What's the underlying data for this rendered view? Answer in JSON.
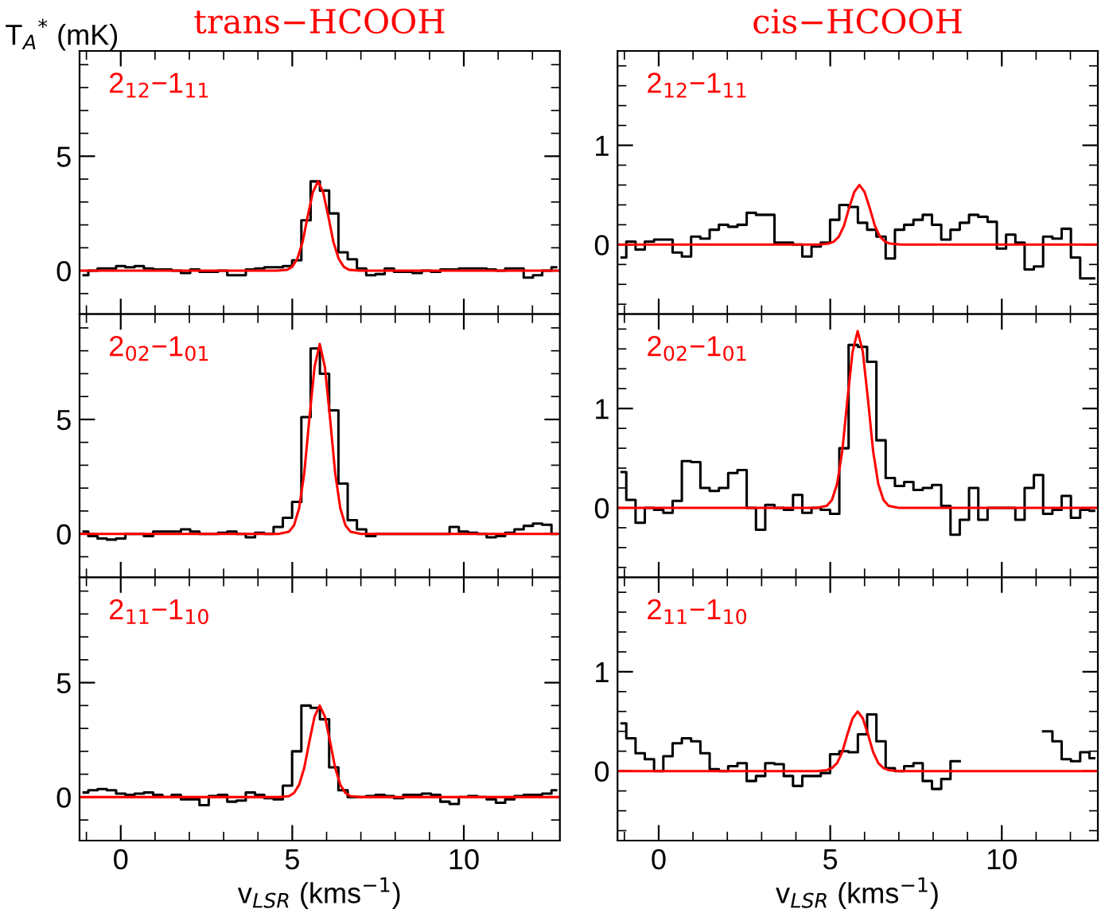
{
  "chart_data": [
    {
      "type": "step",
      "title": "trans−HCOOH",
      "ylabel": "T$_{A}$$^{*}$ (mK)",
      "annotations": [
        "2$_{12}$−1$_{11}$"
      ],
      "tick_labels": "y",
      "x": [
        -1.08,
        -0.81,
        -0.54,
        -0.27,
        0.0,
        0.27,
        0.54,
        0.81,
        1.08,
        1.35,
        1.62,
        1.89,
        2.16,
        2.43,
        2.7,
        2.97,
        3.24,
        3.51,
        3.78,
        4.05,
        4.32,
        4.59,
        4.86,
        5.13,
        5.4,
        5.67,
        5.94,
        6.21,
        6.48,
        6.75,
        7.02,
        7.29,
        7.56,
        7.83,
        8.1,
        8.37,
        8.64,
        8.91,
        9.18,
        9.45,
        9.72,
        9.99,
        10.26,
        10.53,
        10.8,
        11.07,
        11.34,
        11.61,
        11.88,
        12.15,
        12.42,
        12.69
      ],
      "series": [
        {
          "color": "#000000",
          "values": [
            -0.2,
            0.0,
            0.1,
            0.1,
            0.2,
            0.15,
            0.2,
            0.1,
            0.05,
            0.05,
            0.0,
            -0.1,
            0.05,
            -0.05,
            -0.05,
            0.0,
            -0.2,
            -0.2,
            0.05,
            0.1,
            0.15,
            0.15,
            0.2,
            0.45,
            2.2,
            3.9,
            3.5,
            2.5,
            0.8,
            0.5,
            0.1,
            -0.2,
            -0.15,
            0.1,
            -0.05,
            -0.05,
            -0.1,
            0.0,
            -0.05,
            0.05,
            0.05,
            0.1,
            0.1,
            0.1,
            0.05,
            0.0,
            0.1,
            0.1,
            -0.3,
            -0.2,
            0.0,
            0.15
          ]
        },
        {
          "type": "line",
          "color": "#ff0000",
          "x": [
            -1.2,
            4.55,
            4.85,
            5.0,
            5.15,
            5.3,
            5.45,
            5.6,
            5.75,
            5.9,
            6.05,
            6.2,
            6.35,
            6.5,
            6.65,
            6.95,
            12.8
          ],
          "values": [
            0,
            0,
            0.04,
            0.17,
            0.53,
            1.25,
            2.38,
            3.43,
            3.9,
            3.43,
            2.38,
            1.25,
            0.53,
            0.17,
            0.04,
            0,
            0
          ]
        }
      ],
      "xlim": [
        -1.2,
        12.8
      ],
      "ylim": [
        -1.9,
        9.6
      ],
      "xticks": [
        {
          "value": -1,
          "label": null
        },
        0,
        {
          "value": 1,
          "label": null
        },
        {
          "value": 2,
          "label": null
        },
        {
          "value": 3,
          "label": null
        },
        {
          "value": 4,
          "label": null
        },
        5,
        {
          "value": 6,
          "label": null
        },
        {
          "value": 7,
          "label": null
        },
        {
          "value": 8,
          "label": null
        },
        {
          "value": 9,
          "label": null
        },
        10,
        {
          "value": 11,
          "label": null
        },
        {
          "value": 12,
          "label": null
        }
      ],
      "yticks": [
        {
          "value": -1,
          "label": null
        },
        0,
        {
          "value": 1,
          "label": null
        },
        {
          "value": 2,
          "label": null
        },
        {
          "value": 3,
          "label": null
        },
        {
          "value": 4,
          "label": null
        },
        5,
        {
          "value": 6,
          "label": null
        },
        {
          "value": 7,
          "label": null
        },
        {
          "value": 8,
          "label": null
        },
        {
          "value": 9,
          "label": null
        }
      ]
    },
    {
      "type": "step",
      "title": "cis−HCOOH",
      "annotations": [
        "2$_{12}$−1$_{11}$"
      ],
      "tick_labels": "y",
      "x": [
        -1.08,
        -0.81,
        -0.54,
        -0.27,
        0.0,
        0.27,
        0.54,
        0.81,
        1.08,
        1.35,
        1.62,
        1.89,
        2.16,
        2.43,
        2.7,
        2.97,
        3.24,
        3.51,
        3.78,
        4.05,
        4.32,
        4.59,
        4.86,
        5.13,
        5.4,
        5.67,
        5.94,
        6.21,
        6.48,
        6.75,
        7.02,
        7.29,
        7.56,
        7.83,
        8.1,
        8.37,
        8.64,
        8.91,
        9.18,
        9.45,
        9.72,
        9.99,
        10.26,
        10.53,
        10.8,
        11.07,
        11.34,
        11.61,
        11.88,
        12.15,
        12.42,
        12.69
      ],
      "series": [
        {
          "color": "#000000",
          "values": [
            -0.13,
            0.03,
            -0.05,
            0.03,
            0.05,
            0.05,
            -0.08,
            -0.12,
            0.08,
            0.06,
            0.15,
            0.2,
            0.18,
            0.2,
            0.32,
            0.3,
            0.3,
            0.02,
            0.02,
            0.0,
            -0.12,
            -0.02,
            0.02,
            0.25,
            0.4,
            0.38,
            0.22,
            0.15,
            0.08,
            -0.14,
            0.15,
            0.2,
            0.25,
            0.3,
            0.2,
            0.05,
            0.15,
            0.22,
            0.3,
            0.28,
            0.23,
            -0.04,
            0.1,
            0.02,
            -0.25,
            -0.22,
            0.08,
            0.06,
            0.16,
            -0.13,
            -0.34,
            -0.34
          ]
        },
        {
          "type": "line",
          "color": "#ff0000",
          "x": [
            -1.2,
            4.65,
            4.95,
            5.1,
            5.25,
            5.4,
            5.55,
            5.7,
            5.85,
            6.0,
            6.15,
            6.3,
            6.45,
            6.6,
            6.75,
            7.05,
            12.8
          ],
          "values": [
            0,
            0,
            0.01,
            0.03,
            0.08,
            0.19,
            0.37,
            0.53,
            0.6,
            0.53,
            0.37,
            0.19,
            0.08,
            0.03,
            0.01,
            0,
            0
          ]
        }
      ],
      "xlim": [
        -1.2,
        12.8
      ],
      "ylim": [
        -0.7,
        1.95
      ],
      "xticks": [
        {
          "value": -1,
          "label": null
        },
        0,
        {
          "value": 1,
          "label": null
        },
        {
          "value": 2,
          "label": null
        },
        {
          "value": 3,
          "label": null
        },
        {
          "value": 4,
          "label": null
        },
        5,
        {
          "value": 6,
          "label": null
        },
        {
          "value": 7,
          "label": null
        },
        {
          "value": 8,
          "label": null
        },
        {
          "value": 9,
          "label": null
        },
        10,
        {
          "value": 11,
          "label": null
        },
        {
          "value": 12,
          "label": null
        }
      ],
      "yticks": [
        {
          "value": -0.6,
          "label": null
        },
        {
          "value": -0.4,
          "label": null
        },
        {
          "value": -0.2,
          "label": null
        },
        0,
        {
          "value": 0.2,
          "label": null
        },
        {
          "value": 0.4,
          "label": null
        },
        {
          "value": 0.6,
          "label": null
        },
        {
          "value": 0.8,
          "label": null
        },
        1,
        {
          "value": 1.2,
          "label": null
        },
        {
          "value": 1.4,
          "label": null
        },
        {
          "value": 1.6,
          "label": null
        },
        {
          "value": 1.8,
          "label": null
        }
      ]
    },
    {
      "type": "step",
      "annotations": [
        "2$_{02}$−1$_{01}$"
      ],
      "tick_labels": "y",
      "x": [
        -1.08,
        -0.81,
        -0.54,
        -0.27,
        0.0,
        0.27,
        0.54,
        0.81,
        1.08,
        1.35,
        1.62,
        1.89,
        2.16,
        2.43,
        2.7,
        2.97,
        3.24,
        3.51,
        3.78,
        4.05,
        4.32,
        4.59,
        4.86,
        5.13,
        5.4,
        5.67,
        5.94,
        6.21,
        6.48,
        6.75,
        7.02,
        7.29,
        7.56,
        7.83,
        8.1,
        8.37,
        8.64,
        8.91,
        9.18,
        9.45,
        9.72,
        9.99,
        10.26,
        10.53,
        10.8,
        11.07,
        11.34,
        11.61,
        11.88,
        12.15,
        12.42,
        12.69
      ],
      "series": [
        {
          "color": "#000000",
          "values": [
            0.1,
            -0.1,
            -0.2,
            -0.25,
            -0.2,
            0.0,
            0.0,
            -0.1,
            0.1,
            0.1,
            0.1,
            0.2,
            0.1,
            0.0,
            0.0,
            0.05,
            0.1,
            0.0,
            -0.15,
            0.05,
            0.0,
            0.3,
            0.7,
            1.4,
            5.1,
            8.1,
            7.0,
            5.4,
            2.2,
            0.6,
            0.2,
            -0.1,
            0.0,
            0.0,
            0.0,
            0.0,
            0.0,
            0.0,
            0.0,
            0.0,
            0.3,
            0.1,
            0.05,
            0.0,
            -0.15,
            -0.1,
            0.05,
            0.2,
            0.35,
            0.45,
            0.4,
            0.0
          ]
        },
        {
          "type": "line",
          "color": "#ff0000",
          "x": [
            -1.2,
            4.6,
            4.9,
            5.05,
            5.2,
            5.35,
            5.5,
            5.65,
            5.8,
            5.95,
            6.1,
            6.25,
            6.4,
            6.55,
            6.7,
            7.0,
            12.8
          ],
          "values": [
            0,
            0,
            0.09,
            0.37,
            1.12,
            2.66,
            5.06,
            7.3,
            8.3,
            7.3,
            5.06,
            2.66,
            1.12,
            0.37,
            0.09,
            0,
            0
          ]
        }
      ],
      "xlim": [
        -1.2,
        12.8
      ],
      "ylim": [
        -1.9,
        9.6
      ],
      "xticks": [
        {
          "value": -1,
          "label": null
        },
        0,
        {
          "value": 1,
          "label": null
        },
        {
          "value": 2,
          "label": null
        },
        {
          "value": 3,
          "label": null
        },
        {
          "value": 4,
          "label": null
        },
        5,
        {
          "value": 6,
          "label": null
        },
        {
          "value": 7,
          "label": null
        },
        {
          "value": 8,
          "label": null
        },
        {
          "value": 9,
          "label": null
        },
        10,
        {
          "value": 11,
          "label": null
        },
        {
          "value": 12,
          "label": null
        }
      ],
      "yticks": [
        {
          "value": -1,
          "label": null
        },
        0,
        {
          "value": 1,
          "label": null
        },
        {
          "value": 2,
          "label": null
        },
        {
          "value": 3,
          "label": null
        },
        {
          "value": 4,
          "label": null
        },
        5,
        {
          "value": 6,
          "label": null
        },
        {
          "value": 7,
          "label": null
        },
        {
          "value": 8,
          "label": null
        },
        {
          "value": 9,
          "label": null
        }
      ]
    },
    {
      "type": "step",
      "annotations": [
        "2$_{02}$−1$_{01}$"
      ],
      "tick_labels": "y",
      "x": [
        -1.08,
        -0.81,
        -0.54,
        -0.27,
        0.0,
        0.27,
        0.54,
        0.81,
        1.08,
        1.35,
        1.62,
        1.89,
        2.16,
        2.43,
        2.7,
        2.97,
        3.24,
        3.51,
        3.78,
        4.05,
        4.32,
        4.59,
        4.86,
        5.13,
        5.4,
        5.67,
        5.94,
        6.21,
        6.48,
        6.75,
        7.02,
        7.29,
        7.56,
        7.83,
        8.1,
        8.37,
        8.64,
        8.91,
        9.18,
        9.45,
        9.72,
        9.99,
        10.26,
        10.53,
        10.8,
        11.07,
        11.34,
        11.61,
        11.88,
        12.15,
        12.42,
        12.69
      ],
      "series": [
        {
          "color": "#000000",
          "values": [
            0.36,
            0.08,
            -0.15,
            0.0,
            -0.02,
            -0.05,
            0.07,
            0.47,
            0.46,
            0.2,
            0.17,
            0.2,
            0.35,
            0.38,
            0.0,
            -0.22,
            0.03,
            0.0,
            -0.02,
            0.13,
            -0.05,
            0.0,
            -0.02,
            -0.06,
            0.6,
            1.64,
            1.62,
            1.47,
            0.68,
            0.3,
            0.22,
            0.26,
            0.18,
            0.2,
            0.23,
            0.02,
            -0.27,
            -0.12,
            0.2,
            -0.12,
            0.0,
            0.0,
            0.0,
            -0.12,
            0.2,
            0.33,
            -0.06,
            -0.02,
            0.12,
            -0.1,
            -0.02,
            -0.03
          ]
        },
        {
          "type": "line",
          "color": "#ff0000",
          "x": [
            -1.2,
            4.6,
            4.9,
            5.05,
            5.2,
            5.35,
            5.5,
            5.65,
            5.8,
            5.95,
            6.1,
            6.25,
            6.4,
            6.55,
            6.7,
            7.0,
            12.8
          ],
          "values": [
            0,
            0,
            0.02,
            0.08,
            0.24,
            0.57,
            1.09,
            1.57,
            1.78,
            1.57,
            1.09,
            0.57,
            0.24,
            0.08,
            0.02,
            0,
            0
          ]
        }
      ],
      "xlim": [
        -1.2,
        12.8
      ],
      "ylim": [
        -0.7,
        1.95
      ],
      "xticks": [
        {
          "value": -1,
          "label": null
        },
        0,
        {
          "value": 1,
          "label": null
        },
        {
          "value": 2,
          "label": null
        },
        {
          "value": 3,
          "label": null
        },
        {
          "value": 4,
          "label": null
        },
        5,
        {
          "value": 6,
          "label": null
        },
        {
          "value": 7,
          "label": null
        },
        {
          "value": 8,
          "label": null
        },
        {
          "value": 9,
          "label": null
        },
        10,
        {
          "value": 11,
          "label": null
        },
        {
          "value": 12,
          "label": null
        }
      ],
      "yticks": [
        {
          "value": -0.6,
          "label": null
        },
        {
          "value": -0.4,
          "label": null
        },
        {
          "value": -0.2,
          "label": null
        },
        0,
        {
          "value": 0.2,
          "label": null
        },
        {
          "value": 0.4,
          "label": null
        },
        {
          "value": 0.6,
          "label": null
        },
        {
          "value": 0.8,
          "label": null
        },
        1,
        {
          "value": 1.2,
          "label": null
        },
        {
          "value": 1.4,
          "label": null
        },
        {
          "value": 1.6,
          "label": null
        },
        {
          "value": 1.8,
          "label": null
        }
      ]
    },
    {
      "type": "step",
      "xlabel": "v$_{LSR}$ (kms$^{−1}$)",
      "annotations": [
        "2$_{11}$−1$_{10}$"
      ],
      "x": [
        -1.08,
        -0.81,
        -0.54,
        -0.27,
        0.0,
        0.27,
        0.54,
        0.81,
        1.08,
        1.35,
        1.62,
        1.89,
        2.16,
        2.43,
        2.7,
        2.97,
        3.24,
        3.51,
        3.78,
        4.05,
        4.32,
        4.59,
        4.86,
        5.13,
        5.4,
        5.67,
        5.94,
        6.21,
        6.48,
        6.75,
        7.02,
        7.29,
        7.56,
        7.83,
        8.1,
        8.37,
        8.64,
        8.91,
        9.18,
        9.45,
        9.72,
        9.99,
        10.26,
        10.53,
        10.8,
        11.07,
        11.34,
        11.61,
        11.88,
        12.15,
        12.42,
        12.69
      ],
      "series": [
        {
          "color": "#000000",
          "values": [
            0.2,
            0.3,
            0.35,
            0.3,
            0.15,
            0.1,
            0.15,
            0.2,
            0.1,
            0.0,
            0.1,
            -0.1,
            -0.1,
            -0.35,
            0.05,
            0.1,
            -0.2,
            -0.15,
            0.2,
            0.1,
            -0.05,
            -0.1,
            0.5,
            2.0,
            4.0,
            3.9,
            3.4,
            1.3,
            0.3,
            0.0,
            0.0,
            0.05,
            0.1,
            0.05,
            -0.05,
            0.1,
            0.1,
            0.15,
            0.1,
            -0.2,
            -0.3,
            0.0,
            0.05,
            0.0,
            -0.1,
            -0.25,
            -0.1,
            0.05,
            0.1,
            0.1,
            0.15,
            0.3
          ]
        },
        {
          "type": "line",
          "color": "#ff0000",
          "x": [
            -1.2,
            4.6,
            4.9,
            5.05,
            5.2,
            5.35,
            5.5,
            5.65,
            5.8,
            5.95,
            6.1,
            6.25,
            6.4,
            6.55,
            6.7,
            7.0,
            12.8
          ],
          "values": [
            0,
            0,
            0.04,
            0.18,
            0.54,
            1.28,
            2.44,
            3.52,
            4.0,
            3.52,
            2.44,
            1.28,
            0.54,
            0.18,
            0.04,
            0,
            0
          ]
        }
      ],
      "xlim": [
        -1.2,
        12.8
      ],
      "ylim": [
        -1.9,
        9.6
      ],
      "xticks": [
        {
          "value": -1,
          "label": null
        },
        0,
        {
          "value": 1,
          "label": null
        },
        {
          "value": 2,
          "label": null
        },
        {
          "value": 3,
          "label": null
        },
        {
          "value": 4,
          "label": null
        },
        5,
        {
          "value": 6,
          "label": null
        },
        {
          "value": 7,
          "label": null
        },
        {
          "value": 8,
          "label": null
        },
        {
          "value": 9,
          "label": null
        },
        10,
        {
          "value": 11,
          "label": null
        },
        {
          "value": 12,
          "label": null
        }
      ],
      "yticks": [
        {
          "value": -1,
          "label": null
        },
        0,
        {
          "value": 1,
          "label": null
        },
        {
          "value": 2,
          "label": null
        },
        {
          "value": 3,
          "label": null
        },
        {
          "value": 4,
          "label": null
        },
        5,
        {
          "value": 6,
          "label": null
        },
        {
          "value": 7,
          "label": null
        },
        {
          "value": 8,
          "label": null
        },
        {
          "value": 9,
          "label": null
        }
      ]
    },
    {
      "type": "step",
      "xlabel": "v$_{LSR}$ (kms$^{−1}$)",
      "annotations": [
        "2$_{11}$−1$_{10}$"
      ],
      "x": [
        -1.08,
        -0.81,
        -0.54,
        -0.27,
        0.0,
        0.27,
        0.54,
        0.81,
        1.08,
        1.35,
        1.62,
        1.89,
        2.16,
        2.43,
        2.7,
        2.97,
        3.24,
        3.51,
        3.78,
        4.05,
        4.32,
        4.59,
        4.86,
        5.13,
        5.4,
        5.67,
        5.94,
        6.21,
        6.48,
        6.75,
        7.02,
        7.29,
        7.56,
        7.83,
        8.1,
        8.37,
        8.64,
        8.91,
        9.18,
        9.45,
        9.72,
        9.99,
        10.26,
        10.53,
        10.8,
        11.07,
        11.34,
        11.61,
        11.88,
        12.15,
        12.42,
        12.69
      ],
      "series": [
        {
          "color": "#000000",
          "values": [
            0.48,
            0.33,
            0.18,
            0.12,
            0.0,
            0.15,
            0.28,
            0.33,
            0.3,
            0.18,
            0.02,
            0.0,
            0.05,
            0.08,
            -0.1,
            -0.05,
            0.08,
            0.07,
            -0.05,
            -0.15,
            -0.05,
            -0.05,
            -0.02,
            0.17,
            0.2,
            0.19,
            0.37,
            0.57,
            0.3,
            0.03,
            0.0,
            0.05,
            0.08,
            -0.1,
            -0.18,
            -0.08,
            0.1,
            null,
            null,
            null,
            null,
            null,
            null,
            null,
            null,
            null,
            0.4,
            0.3,
            0.12,
            0.1,
            0.19,
            0.13
          ]
        },
        {
          "type": "line",
          "color": "#ff0000",
          "x": [
            -1.2,
            4.6,
            4.9,
            5.05,
            5.2,
            5.35,
            5.5,
            5.65,
            5.8,
            5.95,
            6.1,
            6.25,
            6.4,
            6.55,
            6.7,
            7.0,
            12.8
          ],
          "values": [
            0,
            0,
            0.01,
            0.03,
            0.08,
            0.19,
            0.37,
            0.53,
            0.6,
            0.53,
            0.37,
            0.19,
            0.08,
            0.03,
            0.01,
            0,
            0
          ]
        }
      ],
      "xlim": [
        -1.2,
        12.8
      ],
      "ylim": [
        -0.7,
        1.95
      ],
      "xticks": [
        {
          "value": -1,
          "label": null
        },
        0,
        {
          "value": 1,
          "label": null
        },
        {
          "value": 2,
          "label": null
        },
        {
          "value": 3,
          "label": null
        },
        {
          "value": 4,
          "label": null
        },
        5,
        {
          "value": 6,
          "label": null
        },
        {
          "value": 7,
          "label": null
        },
        {
          "value": 8,
          "label": null
        },
        {
          "value": 9,
          "label": null
        },
        10,
        {
          "value": 11,
          "label": null
        },
        {
          "value": 12,
          "label": null
        }
      ],
      "yticks": [
        {
          "value": -0.6,
          "label": null
        },
        {
          "value": -0.4,
          "label": null
        },
        {
          "value": -0.2,
          "label": null
        },
        0,
        {
          "value": 0.2,
          "label": null
        },
        {
          "value": 0.4,
          "label": null
        },
        {
          "value": 0.6,
          "label": null
        },
        {
          "value": 0.8,
          "label": null
        },
        1,
        {
          "value": 1.2,
          "label": null
        },
        {
          "value": 1.4,
          "label": null
        },
        {
          "value": 1.6,
          "label": null
        },
        {
          "value": 1.8,
          "label": null
        }
      ]
    }
  ]
}
